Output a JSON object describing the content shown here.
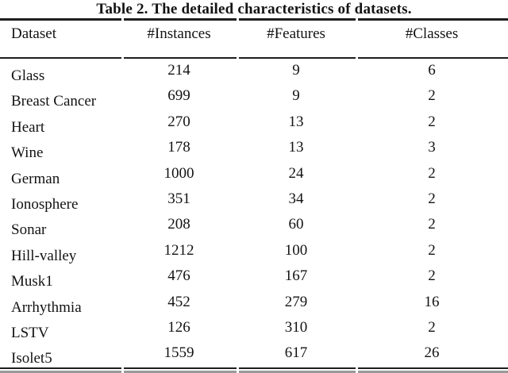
{
  "table": {
    "title": "Table 2. The detailed characteristics of datasets.",
    "columns": [
      "Dataset",
      "#Instances",
      "#Features",
      "#Classes"
    ],
    "rows": [
      [
        "Glass",
        "214",
        "9",
        "6"
      ],
      [
        "Breast Cancer",
        "699",
        "9",
        "2"
      ],
      [
        "Heart",
        "270",
        "13",
        "2"
      ],
      [
        "Wine",
        "178",
        "13",
        "3"
      ],
      [
        "German",
        "1000",
        "24",
        "2"
      ],
      [
        "Ionosphere",
        "351",
        "34",
        "2"
      ],
      [
        "Sonar",
        "208",
        "60",
        "2"
      ],
      [
        "Hill-valley",
        "1212",
        "100",
        "2"
      ],
      [
        "Musk1",
        "476",
        "167",
        "2"
      ],
      [
        "Arrhythmia",
        "452",
        "279",
        "16"
      ],
      [
        "LSTV",
        "126",
        "310",
        "2"
      ],
      [
        "Isolet5",
        "1559",
        "617",
        "26"
      ]
    ],
    "colors": {
      "rule": "#1e1e1e",
      "rule_shadow": "#9a9a9a",
      "text": "#131313",
      "background": "#ffffff"
    }
  }
}
